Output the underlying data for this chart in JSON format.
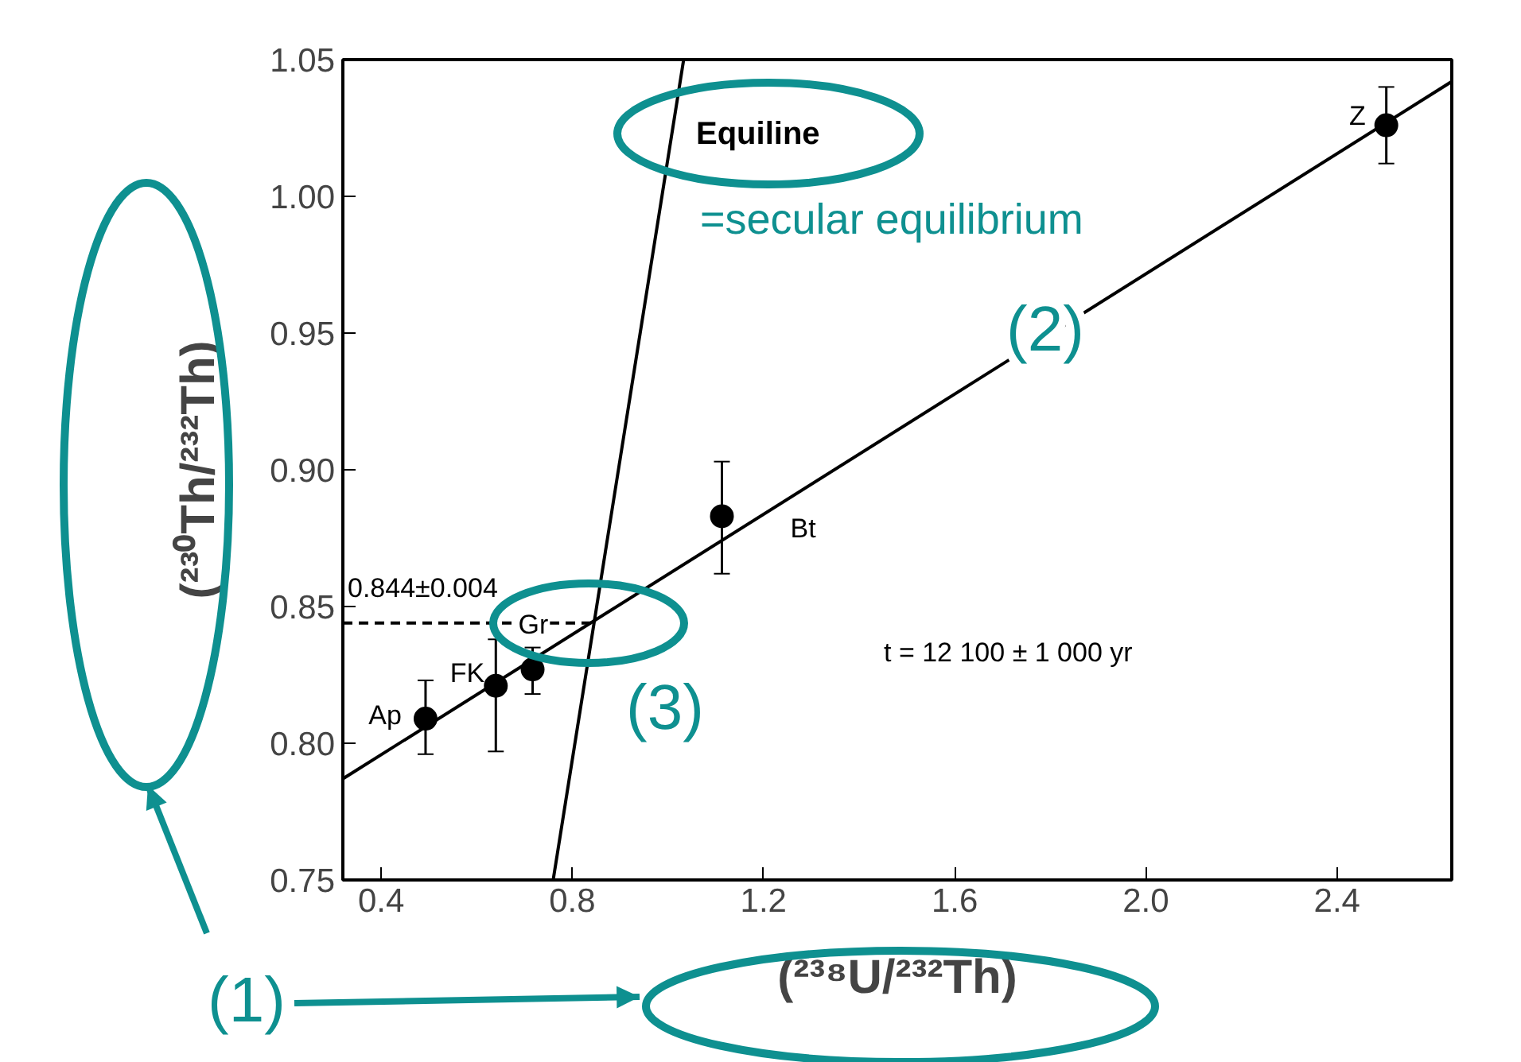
{
  "chart_data": {
    "type": "scatter",
    "xlabel": "(²³⁸U/²³²Th)",
    "ylabel": "(²³⁰Th/²³²Th)",
    "xlim": [
      0.32,
      2.64
    ],
    "ylim": [
      0.75,
      1.05
    ],
    "xticks": [
      0.4,
      0.8,
      1.2,
      1.6,
      {
        "value": 2.0,
        "label": "2.0"
      },
      2.4
    ],
    "yticks": [
      {
        "value": 0.75,
        "label": "0.75"
      },
      {
        "value": 0.8,
        "label": "0.80"
      },
      {
        "value": 0.85,
        "label": "0.85"
      },
      {
        "value": 0.9,
        "label": "0.90"
      },
      {
        "value": 0.95,
        "label": "0.95"
      },
      {
        "value": 1.0,
        "label": "1.00"
      },
      {
        "value": 1.05,
        "label": "1.05"
      }
    ],
    "grid": false,
    "marker": "circle",
    "series": [
      {
        "type": "scatter",
        "color": "#000000",
        "x": [
          0.493,
          0.64,
          0.717,
          1.113,
          2.503
        ],
        "values": [
          0.809,
          0.821,
          0.827,
          0.883,
          1.026
        ],
        "errors": [
          [
            0.796,
            0.823
          ],
          [
            0.797,
            0.838
          ],
          [
            0.818,
            0.835
          ],
          [
            0.862,
            0.903
          ],
          [
            1.012,
            1.04
          ]
        ]
      },
      {
        "type": "line",
        "color": "#000000",
        "x": [
          0.32,
          2.64
        ],
        "values": [
          0.787,
          1.042
        ],
        "line_style": "solid",
        "marker": "none"
      },
      {
        "type": "line",
        "color": "#000000",
        "x": [
          0.76,
          1.033
        ],
        "values": [
          0.75,
          1.05
        ],
        "line_style": "solid",
        "marker": "none"
      },
      {
        "type": "line",
        "color": "#000000",
        "x": [
          0.32,
          0.85
        ],
        "values": [
          0.844,
          0.844
        ],
        "line_style": "dashed",
        "marker": "none"
      }
    ],
    "annotations": [
      {
        "text": "Ap",
        "x": 0.493,
        "y": 0.809
      },
      {
        "text": "FK",
        "x": 0.64,
        "y": 0.821
      },
      {
        "text": "Gr",
        "x": 0.717,
        "y": 0.827
      },
      {
        "text": "Bt",
        "x": 1.113,
        "y": 0.883
      },
      {
        "text": "Z",
        "x": 2.503,
        "y": 1.026
      },
      {
        "text": "0.844±0.004",
        "x": 0.32,
        "y": 0.844
      },
      "Equiline",
      "t = 12 100 ± 1 000 yr",
      "=secular equilibrium",
      "(1)",
      "(2)",
      "(3)"
    ]
  }
}
